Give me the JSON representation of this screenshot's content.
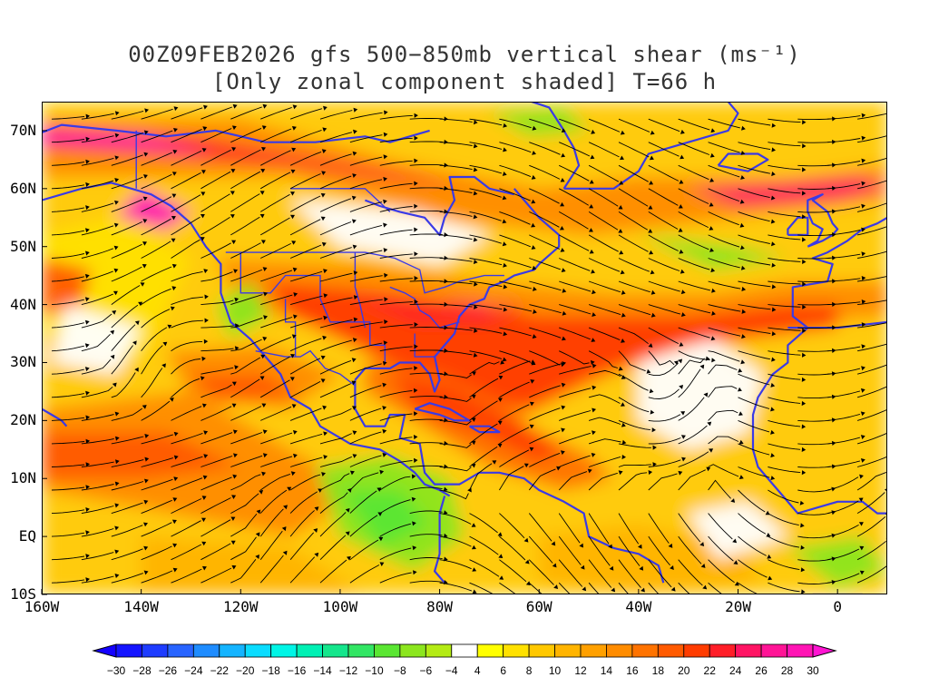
{
  "title": {
    "line1": "00Z09FEB2026 gfs 500−850mb vertical shear (ms⁻¹)",
    "line2": "[Only zonal component shaded] T=66 h"
  },
  "map": {
    "lon_range": [
      -160,
      10
    ],
    "lat_range": [
      -10,
      75
    ],
    "lat_labels": [
      {
        "lat": 70,
        "text": "70N"
      },
      {
        "lat": 60,
        "text": "60N"
      },
      {
        "lat": 50,
        "text": "50N"
      },
      {
        "lat": 40,
        "text": "40N"
      },
      {
        "lat": 30,
        "text": "30N"
      },
      {
        "lat": 20,
        "text": "20N"
      },
      {
        "lat": 10,
        "text": "10N"
      },
      {
        "lat": 0,
        "text": "EQ"
      },
      {
        "lat": -10,
        "text": "10S"
      }
    ],
    "lon_labels": [
      {
        "lon": -160,
        "text": "160W"
      },
      {
        "lon": -140,
        "text": "140W"
      },
      {
        "lon": -120,
        "text": "120W"
      },
      {
        "lon": -100,
        "text": "100W"
      },
      {
        "lon": -80,
        "text": "80W"
      },
      {
        "lon": -60,
        "text": "60W"
      },
      {
        "lon": -40,
        "text": "40W"
      },
      {
        "lon": -20,
        "text": "20W"
      },
      {
        "lon": 0,
        "text": "0"
      }
    ],
    "coastline_color": "#3a3ae6",
    "streamline_color": "#000000"
  },
  "colorbar": {
    "labels": [
      "−30",
      "−28",
      "−26",
      "−24",
      "−22",
      "−20",
      "−18",
      "−16",
      "−14",
      "−12",
      "−10",
      "−8",
      "−6",
      "−4",
      "4",
      "6",
      "8",
      "10",
      "12",
      "14",
      "16",
      "18",
      "20",
      "22",
      "24",
      "26",
      "28",
      "30"
    ],
    "colors": [
      "#1414ff",
      "#1e3cff",
      "#2864ff",
      "#1e8cff",
      "#14b4ff",
      "#0adcff",
      "#00f5e6",
      "#00f0b4",
      "#14e68c",
      "#32e664",
      "#5ae632",
      "#8ce61e",
      "#b4eb14",
      "#ffffff",
      "#ffff00",
      "#ffe100",
      "#ffc800",
      "#ffb400",
      "#ffa000",
      "#ff8c00",
      "#ff7300",
      "#ff5a00",
      "#ff3c00",
      "#ff1e28",
      "#ff1464",
      "#ff1496",
      "#ff14b4"
    ],
    "under_color": "#1400ff",
    "over_color": "#ff14d2"
  }
}
